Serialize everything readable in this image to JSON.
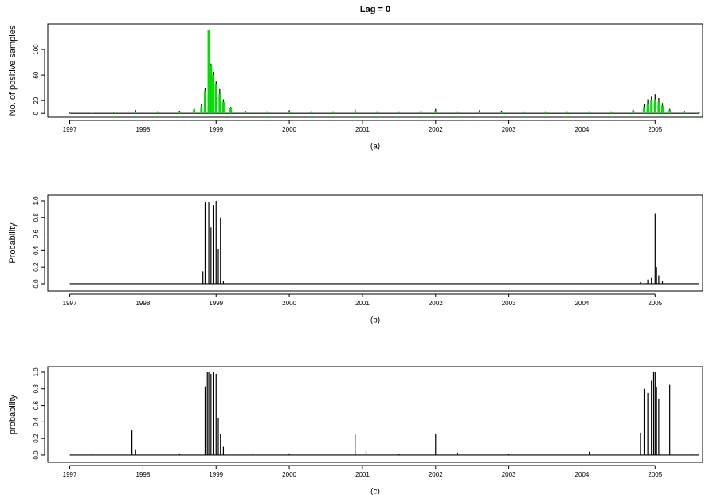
{
  "chart_data": [
    {
      "type": "bar",
      "title": "Lag =  0",
      "ylabel": "No. of positive samples",
      "caption": "(a)",
      "x": [
        1997.0,
        1997.3,
        1997.6,
        1997.9,
        1998.2,
        1998.5,
        1998.7,
        1998.8,
        1998.85,
        1998.9,
        1998.93,
        1998.96,
        1999.0,
        1999.05,
        1999.1,
        1999.2,
        1999.4,
        1999.7,
        2000.0,
        2000.3,
        2000.6,
        2000.9,
        2001.2,
        2001.5,
        2001.8,
        2002.0,
        2002.3,
        2002.6,
        2002.9,
        2003.2,
        2003.5,
        2003.8,
        2004.1,
        2004.4,
        2004.7,
        2004.85,
        2004.9,
        2004.95,
        2005.0,
        2005.05,
        2005.1,
        2005.2,
        2005.4,
        2005.6
      ],
      "series": [
        {
          "color": "#000000",
          "values": [
            2,
            1,
            2,
            5,
            3,
            4,
            8,
            15,
            40,
            125,
            78,
            65,
            50,
            38,
            22,
            10,
            4,
            3,
            5,
            3,
            3,
            6,
            3,
            3,
            4,
            7,
            3,
            5,
            4,
            3,
            3,
            3,
            3,
            3,
            6,
            14,
            22,
            26,
            30,
            24,
            16,
            7,
            4,
            3
          ]
        },
        {
          "color": "#00e000",
          "values": [
            1,
            1,
            1,
            2,
            2,
            3,
            6,
            10,
            35,
            130,
            75,
            60,
            45,
            30,
            18,
            8,
            3,
            2,
            3,
            2,
            2,
            3,
            2,
            2,
            3,
            4,
            2,
            3,
            3,
            2,
            2,
            2,
            2,
            2,
            4,
            10,
            15,
            20,
            22,
            18,
            12,
            5,
            3,
            2
          ]
        }
      ],
      "xlim": [
        1996.7,
        2005.65
      ],
      "xticks": [
        1997,
        1998,
        1999,
        2000,
        2001,
        2002,
        2003,
        2004,
        2005
      ],
      "ylim": [
        -6,
        140
      ],
      "yticks": [
        0,
        20,
        60,
        100
      ]
    },
    {
      "type": "bar",
      "ylabel": "Probability",
      "caption": "(b)",
      "color": "#000000",
      "x": [
        1998.82,
        1998.85,
        1998.9,
        1998.93,
        1998.96,
        1999.0,
        1999.03,
        1999.06,
        1999.1,
        2004.8,
        2004.9,
        2004.95,
        2005.0,
        2005.02,
        2005.05,
        2005.1
      ],
      "values": [
        0.15,
        0.98,
        0.98,
        0.68,
        0.95,
        1.0,
        0.42,
        0.8,
        0.03,
        0.02,
        0.05,
        0.07,
        0.85,
        0.2,
        0.1,
        0.03
      ],
      "xlim": [
        1996.7,
        2005.65
      ],
      "xticks": [
        1997,
        1998,
        1999,
        2000,
        2001,
        2002,
        2003,
        2004,
        2005
      ],
      "ylim": [
        -0.087,
        1.067
      ],
      "yticks": [
        {
          "value": 0,
          "label": "0.0"
        },
        0.2,
        0.4,
        0.6,
        0.8,
        {
          "value": 1,
          "label": "1.0"
        }
      ]
    },
    {
      "type": "bar",
      "ylabel": "probability",
      "caption": "(c)",
      "color": "#000000",
      "x": [
        1997.3,
        1997.85,
        1997.9,
        1998.5,
        1998.85,
        1998.88,
        1998.9,
        1998.93,
        1998.96,
        1999.0,
        1999.03,
        1999.06,
        1999.1,
        1999.5,
        2000.0,
        2000.9,
        2001.05,
        2001.5,
        2002.0,
        2002.3,
        2003.0,
        2004.1,
        2004.8,
        2004.85,
        2004.9,
        2004.95,
        2004.98,
        2005.0,
        2005.02,
        2005.05,
        2005.2,
        2005.5
      ],
      "values": [
        0.01,
        0.3,
        0.07,
        0.02,
        0.83,
        1.0,
        1.0,
        0.98,
        1.0,
        0.98,
        0.45,
        0.25,
        0.1,
        0.02,
        0.02,
        0.25,
        0.05,
        0.01,
        0.26,
        0.03,
        0.01,
        0.04,
        0.27,
        0.8,
        0.75,
        0.9,
        1.0,
        1.0,
        0.82,
        0.68,
        0.85,
        0.01
      ],
      "xlim": [
        1996.7,
        2005.65
      ],
      "xticks": [
        1997,
        1998,
        1999,
        2000,
        2001,
        2002,
        2003,
        2004,
        2005
      ],
      "ylim": [
        -0.087,
        1.067
      ],
      "yticks": [
        {
          "value": 0,
          "label": "0.0"
        },
        0.2,
        0.4,
        0.6,
        0.8,
        {
          "value": 1,
          "label": "1.0"
        }
      ]
    }
  ]
}
